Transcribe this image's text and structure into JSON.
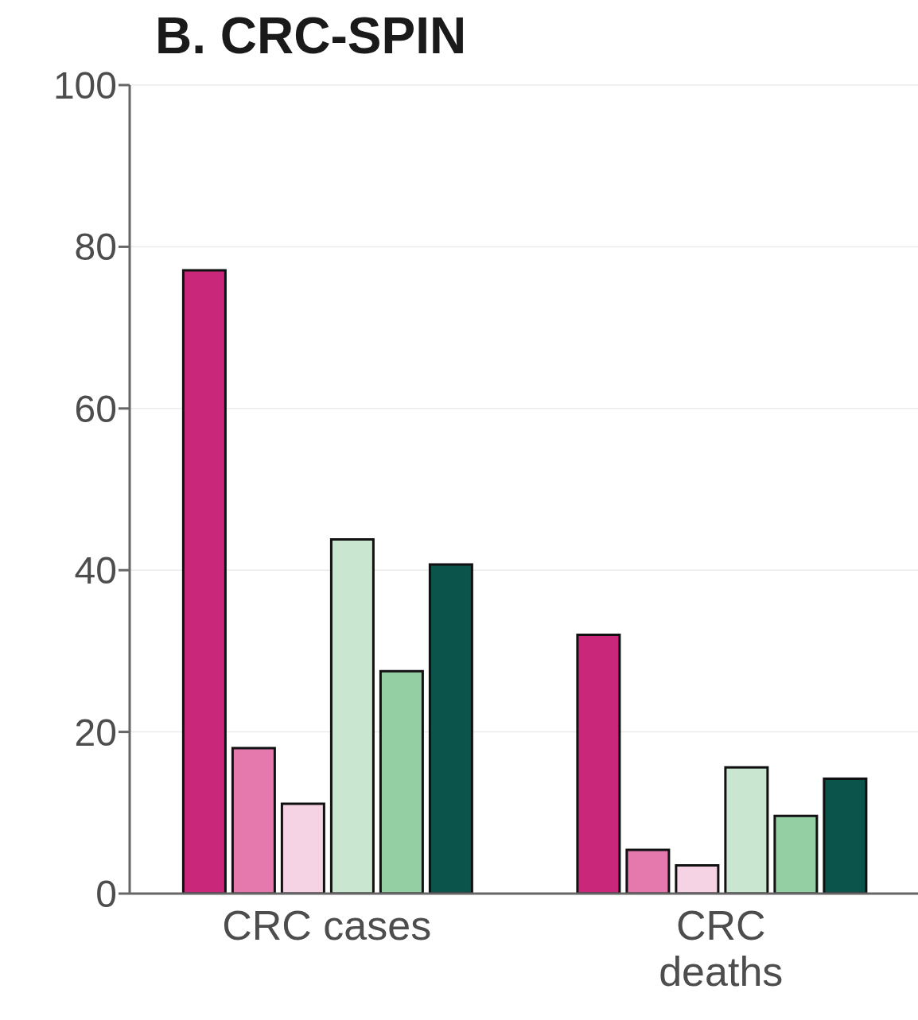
{
  "chart_data": {
    "type": "bar",
    "title": "B. CRC-SPIN",
    "categories": [
      "CRC cases",
      "CRC deaths"
    ],
    "series": [
      {
        "color": "#c9287a",
        "values": [
          77.1,
          32.0
        ]
      },
      {
        "color": "#e579ae",
        "values": [
          18.0,
          5.4
        ]
      },
      {
        "color": "#f6d2e5",
        "values": [
          11.1,
          3.5
        ]
      },
      {
        "color": "#c8e6d0",
        "values": [
          43.8,
          15.6
        ]
      },
      {
        "color": "#93cfa3",
        "values": [
          27.5,
          9.6
        ]
      },
      {
        "color": "#0b544c",
        "values": [
          40.7,
          14.2
        ]
      }
    ],
    "ylim": [
      0,
      100
    ],
    "yticks": [
      0,
      20,
      40,
      60,
      80,
      100
    ],
    "grid": "y"
  }
}
